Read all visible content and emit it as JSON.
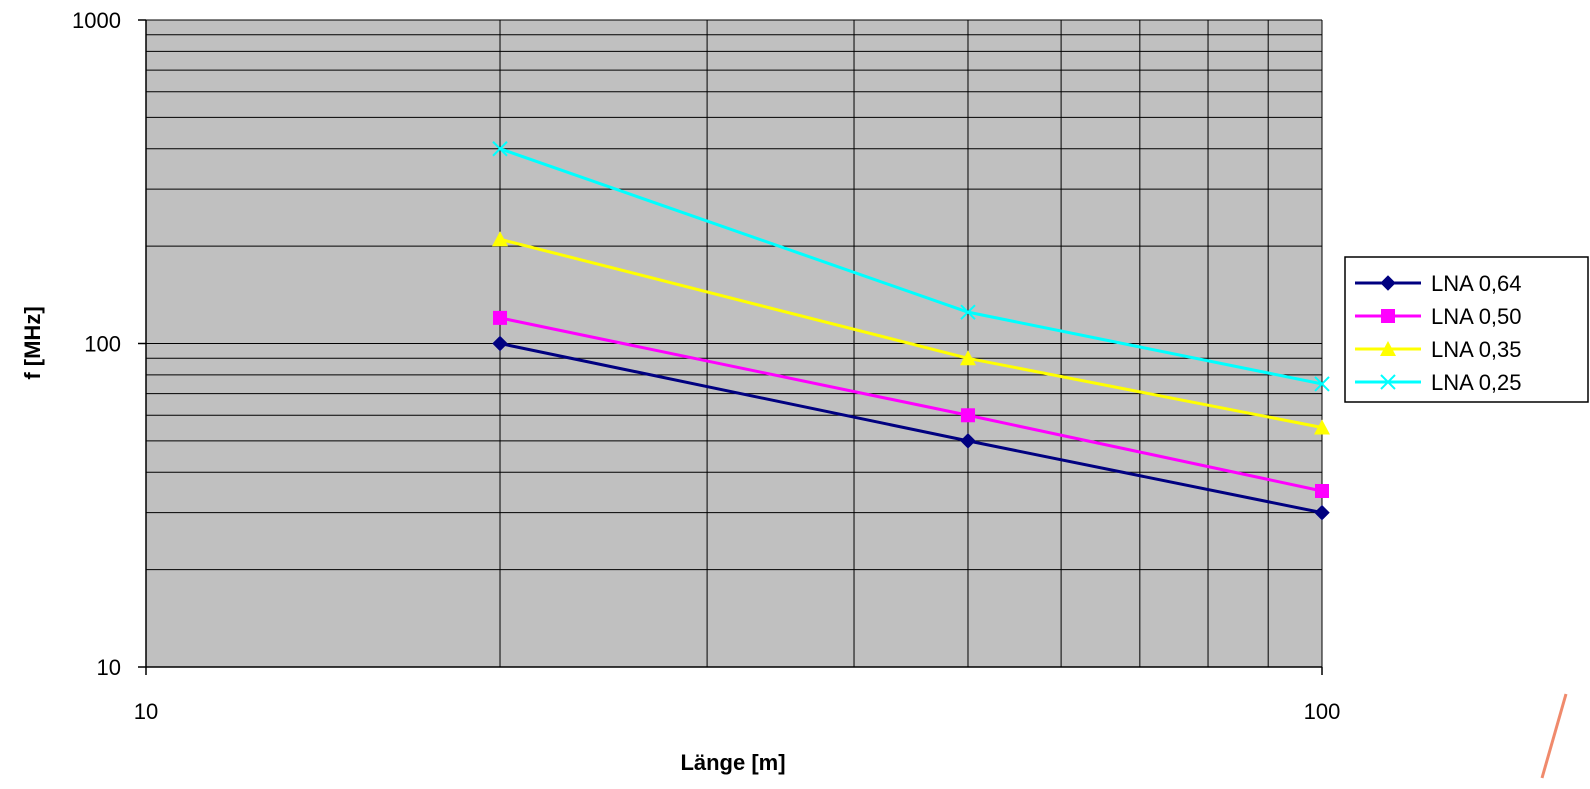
{
  "chart_data": {
    "type": "line",
    "x_scale": "log",
    "y_scale": "log",
    "xlim": [
      10,
      100
    ],
    "ylim": [
      10,
      1000
    ],
    "xlabel": "Länge [m]",
    "ylabel": "f [MHz]",
    "x_ticks": [
      "10",
      "100"
    ],
    "y_ticks": [
      "10",
      "100",
      "1000"
    ],
    "grid": true,
    "legend_position": "right",
    "plot_background": "#c0c0c0",
    "x": [
      20,
      50,
      100
    ],
    "series": [
      {
        "name": "LNA 0,64",
        "color": "#000080",
        "marker": "diamond",
        "values": [
          100,
          50,
          30
        ]
      },
      {
        "name": "LNA 0,50",
        "color": "#ff00ff",
        "marker": "square",
        "values": [
          120,
          60,
          35
        ]
      },
      {
        "name": "LNA 0,35",
        "color": "#ffff00",
        "marker": "triangle",
        "values": [
          210,
          90,
          55
        ]
      },
      {
        "name": "LNA 0,25",
        "color": "#00ffff",
        "marker": "x",
        "values": [
          400,
          125,
          75
        ]
      }
    ]
  }
}
